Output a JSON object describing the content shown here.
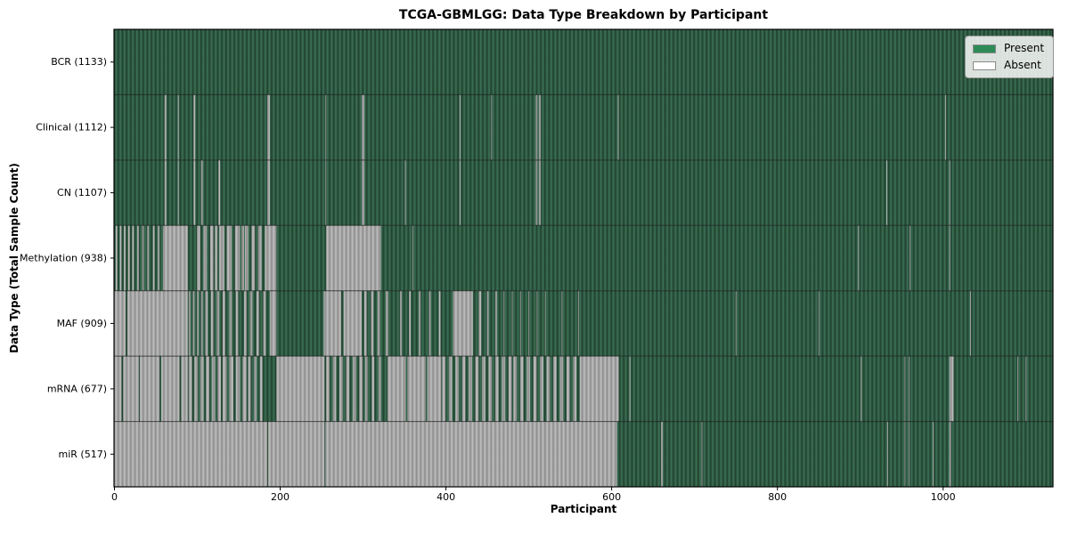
{
  "title": "TCGA-GBMLGG: Data Type Breakdown by Participant",
  "xlabel": "Participant",
  "ylabel": "Data Type (Total Sample Count)",
  "legend": {
    "items": [
      {
        "label": "Present",
        "color": "#2e8b57"
      },
      {
        "label": "Absent",
        "color": "#ffffff"
      }
    ]
  },
  "colors": {
    "present": "#2e8b57",
    "absent": "#ffffff",
    "present_rib_dark": "#1e3e2c",
    "present_rib_mid": "#2d5a42",
    "present_rib_light": "#3f7156",
    "absent_rib_dark": "#8b8b8b",
    "absent_rib_mid": "#a5a5a5",
    "absent_rib_light": "#c1c1c1"
  },
  "chart_data": {
    "type": "heatmap",
    "title": "TCGA-GBMLGG: Data Type Breakdown by Participant",
    "xlabel": "Participant",
    "ylabel": "Data Type (Total Sample Count)",
    "legend_position": "upper right",
    "x_axis": {
      "label": "Participant",
      "max": 1133,
      "ticks": [
        0,
        200,
        400,
        600,
        800,
        1000
      ]
    },
    "cell_states": [
      "Present",
      "Absent"
    ],
    "rows": [
      {
        "key": "BCR",
        "label": "BCR (1133)",
        "total": 1133,
        "absent_ranges": []
      },
      {
        "key": "Clinical",
        "label": "Clinical (1112)",
        "total": 1112,
        "absent_ranges": [
          [
            61,
            63
          ],
          [
            77,
            78
          ],
          [
            96,
            98
          ],
          [
            185,
            188
          ],
          [
            255,
            256
          ],
          [
            299,
            302
          ],
          [
            417,
            418
          ],
          [
            455,
            456
          ],
          [
            509,
            511
          ],
          [
            513,
            515
          ],
          [
            608,
            609
          ],
          [
            1003,
            1004
          ]
        ]
      },
      {
        "key": "CN",
        "label": "CN (1107)",
        "total": 1107,
        "absent_ranges": [
          [
            61,
            63
          ],
          [
            77,
            78
          ],
          [
            96,
            98
          ],
          [
            105,
            107
          ],
          [
            126,
            128
          ],
          [
            185,
            188
          ],
          [
            255,
            256
          ],
          [
            299,
            302
          ],
          [
            351,
            352
          ],
          [
            417,
            418
          ],
          [
            509,
            511
          ],
          [
            513,
            515
          ],
          [
            932,
            933
          ],
          [
            1008,
            1009
          ]
        ]
      },
      {
        "key": "Methylation",
        "label": "Methylation (938)",
        "total": 938,
        "absent_ranges": [
          [
            2,
            4
          ],
          [
            7,
            9
          ],
          [
            12,
            14
          ],
          [
            17,
            19
          ],
          [
            22,
            24
          ],
          [
            28,
            30
          ],
          [
            34,
            36
          ],
          [
            40,
            42
          ],
          [
            47,
            49
          ],
          [
            53,
            55
          ],
          [
            59,
            89
          ],
          [
            100,
            104
          ],
          [
            108,
            112
          ],
          [
            116,
            120
          ],
          [
            122,
            125
          ],
          [
            127,
            133
          ],
          [
            136,
            142
          ],
          [
            146,
            152
          ],
          [
            154,
            157
          ],
          [
            158,
            162
          ],
          [
            166,
            170
          ],
          [
            174,
            178
          ],
          [
            182,
            196
          ],
          [
            256,
            322
          ],
          [
            360,
            361
          ],
          [
            898,
            899
          ],
          [
            960,
            961
          ],
          [
            1008,
            1009
          ]
        ]
      },
      {
        "key": "MAF",
        "label": "MAF (909)",
        "total": 909,
        "absent_ranges": [
          [
            0,
            14
          ],
          [
            16,
            89
          ],
          [
            90,
            92
          ],
          [
            95,
            97
          ],
          [
            100,
            102
          ],
          [
            105,
            107
          ],
          [
            110,
            113
          ],
          [
            117,
            120
          ],
          [
            124,
            127
          ],
          [
            131,
            134
          ],
          [
            139,
            142
          ],
          [
            147,
            150
          ],
          [
            157,
            160
          ],
          [
            164,
            167
          ],
          [
            172,
            175
          ],
          [
            180,
            183
          ],
          [
            188,
            196
          ],
          [
            253,
            274
          ],
          [
            277,
            299
          ],
          [
            302,
            305
          ],
          [
            310,
            313
          ],
          [
            318,
            321
          ],
          [
            328,
            331
          ],
          [
            345,
            347
          ],
          [
            356,
            358
          ],
          [
            368,
            370
          ],
          [
            380,
            382
          ],
          [
            392,
            394
          ],
          [
            409,
            433
          ],
          [
            440,
            443
          ],
          [
            450,
            452
          ],
          [
            460,
            462
          ],
          [
            470,
            471
          ],
          [
            480,
            481
          ],
          [
            490,
            491
          ],
          [
            500,
            501
          ],
          [
            510,
            511
          ],
          [
            520,
            521
          ],
          [
            540,
            541
          ],
          [
            560,
            561
          ],
          [
            750,
            751
          ],
          [
            850,
            851
          ],
          [
            1033,
            1034
          ]
        ]
      },
      {
        "key": "mRNA",
        "label": "mRNA (677)",
        "total": 677,
        "absent_ranges": [
          [
            0,
            9
          ],
          [
            11,
            30
          ],
          [
            31,
            55
          ],
          [
            57,
            79
          ],
          [
            81,
            89
          ],
          [
            90,
            94
          ],
          [
            97,
            101
          ],
          [
            104,
            108
          ],
          [
            111,
            115
          ],
          [
            118,
            122
          ],
          [
            125,
            129
          ],
          [
            131,
            136
          ],
          [
            139,
            144
          ],
          [
            147,
            152
          ],
          [
            155,
            160
          ],
          [
            162,
            165
          ],
          [
            169,
            172
          ],
          [
            176,
            179
          ],
          [
            196,
            254
          ],
          [
            256,
            260
          ],
          [
            264,
            268
          ],
          [
            272,
            276
          ],
          [
            280,
            284
          ],
          [
            288,
            292
          ],
          [
            296,
            300
          ],
          [
            303,
            306
          ],
          [
            311,
            314
          ],
          [
            319,
            322
          ],
          [
            330,
            352
          ],
          [
            354,
            376
          ],
          [
            378,
            395
          ],
          [
            396,
            400
          ],
          [
            404,
            408
          ],
          [
            412,
            416
          ],
          [
            420,
            424
          ],
          [
            428,
            432
          ],
          [
            436,
            440
          ],
          [
            444,
            448
          ],
          [
            452,
            456
          ],
          [
            460,
            464
          ],
          [
            468,
            472
          ],
          [
            476,
            480
          ],
          [
            482,
            486
          ],
          [
            490,
            494
          ],
          [
            498,
            502
          ],
          [
            506,
            510
          ],
          [
            514,
            518
          ],
          [
            522,
            526
          ],
          [
            530,
            534
          ],
          [
            538,
            542
          ],
          [
            546,
            550
          ],
          [
            554,
            558
          ],
          [
            562,
            609
          ],
          [
            622,
            623
          ],
          [
            901,
            902
          ],
          [
            954,
            955
          ],
          [
            959,
            960
          ],
          [
            1008,
            1013
          ],
          [
            1090,
            1091
          ],
          [
            1100,
            1101
          ]
        ]
      },
      {
        "key": "miR",
        "label": "miR (517)",
        "total": 517,
        "absent_ranges": [
          [
            0,
            185
          ],
          [
            186,
            254
          ],
          [
            255,
            607
          ],
          [
            660,
            662
          ],
          [
            709,
            710
          ],
          [
            933,
            934
          ],
          [
            954,
            955
          ],
          [
            959,
            960
          ],
          [
            988,
            989
          ],
          [
            1008,
            1010
          ]
        ]
      }
    ]
  }
}
